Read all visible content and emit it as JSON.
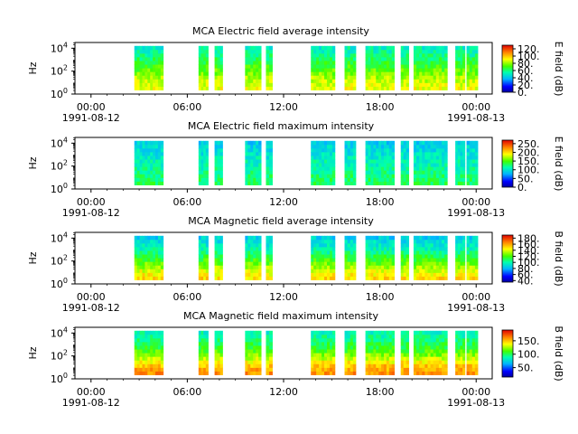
{
  "chart_data": [
    {
      "type": "heatmap",
      "title": "MCA  Electric field average intensity",
      "ylabel": "Hz",
      "colorbar_label": "E field (dB)",
      "colorbar_ticks": [
        "0.",
        "20.",
        "40.",
        "60.",
        "80.",
        "100.",
        "120."
      ],
      "colorbar_range": [
        0,
        130
      ],
      "yticks": [
        {
          "base": "10",
          "exp": "0"
        },
        {
          "base": "10",
          "exp": "2"
        },
        {
          "base": "10",
          "exp": "4"
        }
      ],
      "ylim_exp": [
        0,
        4.5
      ],
      "ylog": true,
      "x_start_date": "1991-08-12",
      "x_end_date": "1991-08-13",
      "x_tick_times": [
        "00:00",
        "06:00",
        "12:00",
        "18:00",
        "00:00"
      ],
      "x_tick_dates": [
        "1991-08-12",
        "",
        "",
        "",
        "1991-08-13"
      ],
      "x_range_hours": [
        -1,
        25
      ],
      "data_blocks_hours": [
        [
          2.7,
          4.5
        ],
        [
          6.7,
          7.3
        ],
        [
          7.7,
          8.2
        ],
        [
          9.6,
          10.6
        ],
        [
          10.9,
          11.3
        ],
        [
          13.7,
          15.2
        ],
        [
          15.8,
          16.5
        ],
        [
          17.1,
          18.9
        ],
        [
          19.3,
          19.8
        ],
        [
          20.1,
          22.2
        ],
        [
          22.7,
          23.3
        ],
        [
          23.4,
          24.1
        ]
      ],
      "z_profile_db": [
        90,
        88,
        85,
        82,
        78,
        74,
        70,
        66,
        62,
        58,
        55,
        52
      ]
    },
    {
      "type": "heatmap",
      "title": "MCA  Electric field maximum intensity",
      "ylabel": "Hz",
      "colorbar_label": "E field (dB)",
      "colorbar_ticks": [
        "0.",
        "50.",
        "100.",
        "150.",
        "200.",
        "250."
      ],
      "colorbar_range": [
        0,
        270
      ],
      "yticks": [
        {
          "base": "10",
          "exp": "0"
        },
        {
          "base": "10",
          "exp": "2"
        },
        {
          "base": "10",
          "exp": "4"
        }
      ],
      "ylim_exp": [
        0,
        4.5
      ],
      "ylog": true,
      "x_start_date": "1991-08-12",
      "x_end_date": "1991-08-13",
      "x_tick_times": [
        "00:00",
        "06:00",
        "12:00",
        "18:00",
        "00:00"
      ],
      "x_tick_dates": [
        "1991-08-12",
        "",
        "",
        "",
        "1991-08-13"
      ],
      "x_range_hours": [
        -1,
        25
      ],
      "data_blocks_hours": [
        [
          2.7,
          4.5
        ],
        [
          6.7,
          7.3
        ],
        [
          7.7,
          8.2
        ],
        [
          9.6,
          10.6
        ],
        [
          10.9,
          11.3
        ],
        [
          13.7,
          15.2
        ],
        [
          15.8,
          16.5
        ],
        [
          17.1,
          18.9
        ],
        [
          19.3,
          19.8
        ],
        [
          20.1,
          22.2
        ],
        [
          22.7,
          23.3
        ],
        [
          23.4,
          24.1
        ]
      ],
      "z_profile_db": [
        130,
        128,
        125,
        120,
        115,
        110,
        108,
        104,
        100,
        96,
        92,
        88
      ]
    },
    {
      "type": "heatmap",
      "title": "MCA  Magnetic field average intensity",
      "ylabel": "Hz",
      "colorbar_label": "B field (dB)",
      "colorbar_ticks": [
        "40.",
        "60.",
        "80.",
        "100.",
        "120.",
        "140.",
        "160.",
        "180."
      ],
      "colorbar_range": [
        35,
        190
      ],
      "yticks": [
        {
          "base": "10",
          "exp": "0"
        },
        {
          "base": "10",
          "exp": "2"
        },
        {
          "base": "10",
          "exp": "4"
        }
      ],
      "ylim_exp": [
        0,
        4.5
      ],
      "ylog": true,
      "x_start_date": "1991-08-12",
      "x_end_date": "1991-08-13",
      "x_tick_times": [
        "00:00",
        "06:00",
        "12:00",
        "18:00",
        "00:00"
      ],
      "x_tick_dates": [
        "1991-08-12",
        "",
        "",
        "",
        "1991-08-13"
      ],
      "x_range_hours": [
        -1,
        25
      ],
      "data_blocks_hours": [
        [
          2.7,
          4.5
        ],
        [
          6.7,
          7.3
        ],
        [
          7.7,
          8.2
        ],
        [
          9.6,
          10.6
        ],
        [
          10.9,
          11.3
        ],
        [
          13.7,
          15.2
        ],
        [
          15.8,
          16.5
        ],
        [
          17.1,
          18.9
        ],
        [
          19.3,
          19.8
        ],
        [
          20.1,
          22.2
        ],
        [
          22.7,
          23.3
        ],
        [
          23.4,
          24.1
        ]
      ],
      "z_profile_db": [
        150,
        145,
        140,
        132,
        125,
        118,
        112,
        104,
        98,
        94,
        90,
        86
      ]
    },
    {
      "type": "heatmap",
      "title": "MCA  Magnetic field maximum intensity",
      "ylabel": "Hz",
      "colorbar_label": "B field (dB)",
      "colorbar_ticks": [
        "50.",
        "100.",
        "150."
      ],
      "colorbar_range": [
        15,
        190
      ],
      "yticks": [
        {
          "base": "10",
          "exp": "0"
        },
        {
          "base": "10",
          "exp": "2"
        },
        {
          "base": "10",
          "exp": "4"
        }
      ],
      "ylim_exp": [
        0,
        4.5
      ],
      "ylog": true,
      "x_start_date": "1991-08-12",
      "x_end_date": "1991-08-13",
      "x_tick_times": [
        "00:00",
        "06:00",
        "12:00",
        "18:00",
        "00:00"
      ],
      "x_tick_dates": [
        "1991-08-12",
        "",
        "",
        "",
        "1991-08-13"
      ],
      "x_range_hours": [
        -1,
        25
      ],
      "data_blocks_hours": [
        [
          2.7,
          4.5
        ],
        [
          6.7,
          7.3
        ],
        [
          7.7,
          8.2
        ],
        [
          9.6,
          10.6
        ],
        [
          10.9,
          11.3
        ],
        [
          13.7,
          15.2
        ],
        [
          15.8,
          16.5
        ],
        [
          17.1,
          18.9
        ],
        [
          19.3,
          19.8
        ],
        [
          20.1,
          22.2
        ],
        [
          22.7,
          23.3
        ],
        [
          23.4,
          24.1
        ]
      ],
      "z_profile_db": [
        160,
        155,
        150,
        140,
        130,
        120,
        112,
        105,
        100,
        95,
        90,
        86
      ]
    }
  ]
}
